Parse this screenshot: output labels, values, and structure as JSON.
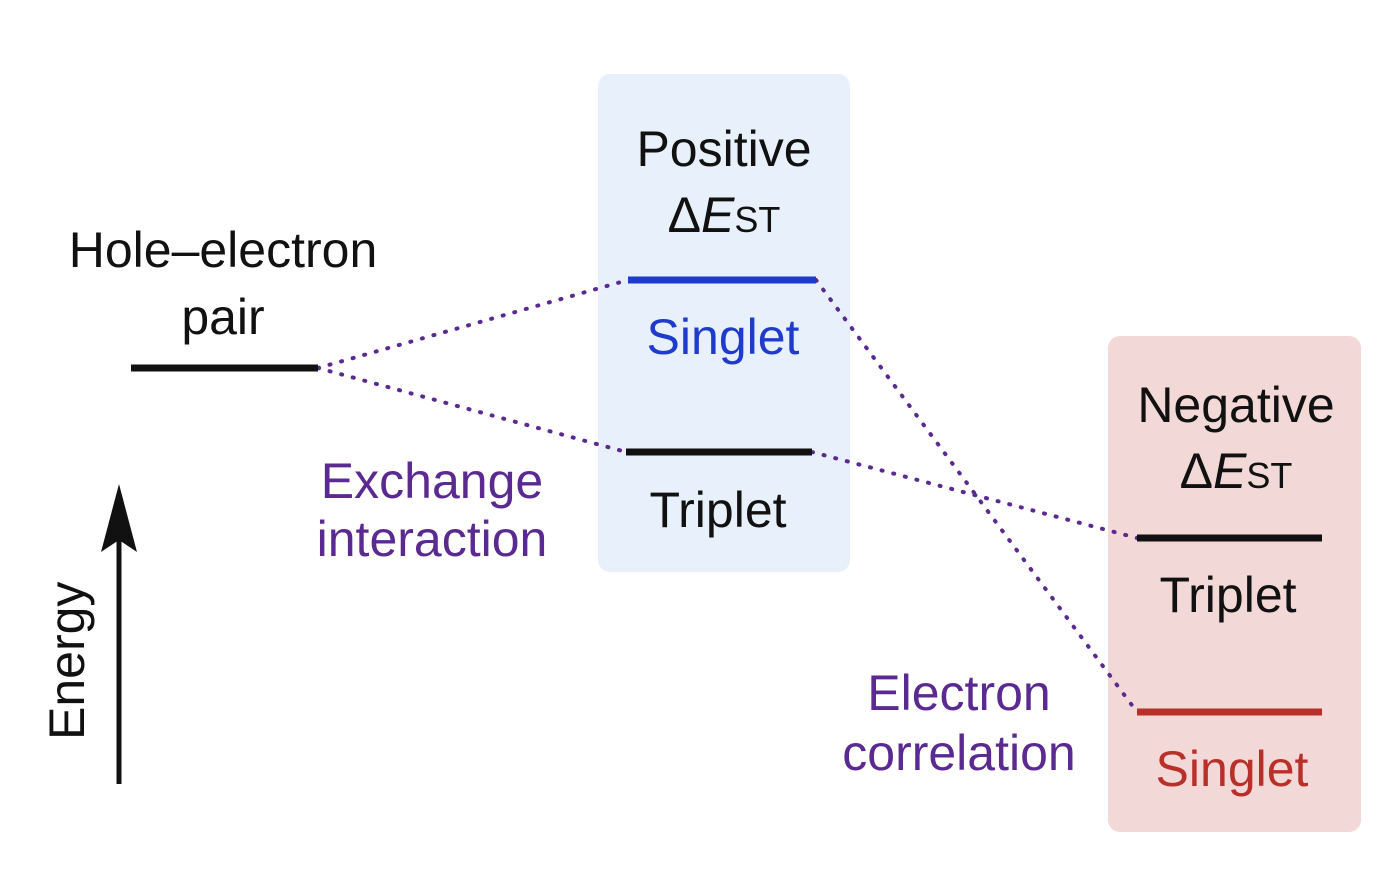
{
  "diagram": {
    "hole_electron": {
      "line1": "Hole–electron",
      "line2": "pair"
    },
    "exchange": {
      "line1": "Exchange",
      "line2": "interaction"
    },
    "electron_correlation": {
      "line1": "Electron",
      "line2": "correlation"
    },
    "energy_axis_label": "Energy",
    "positive_box": {
      "line1": "Positive",
      "delta": "Δ",
      "E": "E",
      "sub": "ST",
      "singlet": "Singlet",
      "triplet": "Triplet"
    },
    "negative_box": {
      "line1": "Negative",
      "delta": "Δ",
      "E": "E",
      "sub": "ST",
      "triplet": "Triplet",
      "singlet": "Singlet"
    }
  },
  "colors": {
    "positive_box_bg": "#e8f1fb",
    "negative_box_bg": "#f3d8d8",
    "singlet_positive": "#1f3bcc",
    "singlet_negative": "#b8302a",
    "connector": "#5a2a91",
    "level_line": "#111111"
  }
}
